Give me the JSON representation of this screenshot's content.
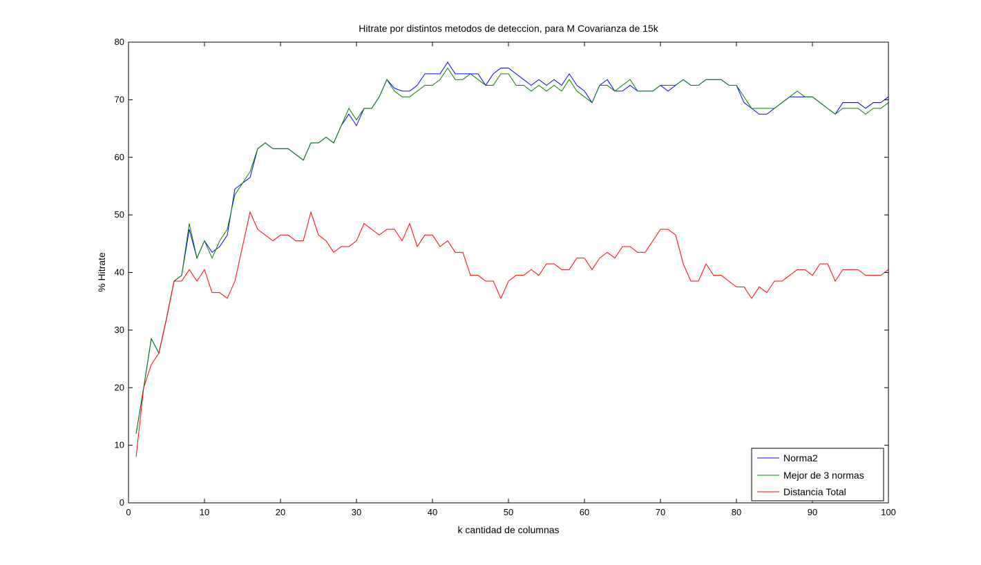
{
  "chart_data": {
    "type": "line",
    "title": "Hitrate por distintos metodos de deteccion, para M Covarianza de 15k",
    "xlabel": "k cantidad de columnas",
    "ylabel": "% Hitrate",
    "xlim": [
      0,
      100
    ],
    "ylim": [
      0,
      80
    ],
    "xticks": [
      0,
      10,
      20,
      30,
      40,
      50,
      60,
      70,
      80,
      90,
      100
    ],
    "yticks": [
      0,
      10,
      20,
      30,
      40,
      50,
      60,
      70,
      80
    ],
    "grid": false,
    "legend_position": "bottom-right",
    "x": [
      1,
      2,
      3,
      4,
      5,
      6,
      7,
      8,
      9,
      10,
      11,
      12,
      13,
      14,
      15,
      16,
      17,
      18,
      19,
      20,
      21,
      22,
      23,
      24,
      25,
      26,
      27,
      28,
      29,
      30,
      31,
      32,
      33,
      34,
      35,
      36,
      37,
      38,
      39,
      40,
      41,
      42,
      43,
      44,
      45,
      46,
      47,
      48,
      49,
      50,
      51,
      52,
      53,
      54,
      55,
      56,
      57,
      58,
      59,
      60,
      61,
      62,
      63,
      64,
      65,
      66,
      67,
      68,
      69,
      70,
      71,
      72,
      73,
      74,
      75,
      76,
      77,
      78,
      79,
      80,
      81,
      82,
      83,
      84,
      85,
      86,
      87,
      88,
      89,
      90,
      91,
      92,
      93,
      94,
      95,
      96,
      97,
      98,
      99,
      100
    ],
    "series": [
      {
        "name": "Norma2",
        "color": "#0000ff",
        "values": [
          12,
          20,
          28.5,
          26,
          32,
          38.5,
          39.5,
          47.5,
          42.5,
          45.5,
          43.5,
          44.5,
          46.5,
          54.5,
          55.5,
          56.5,
          61.5,
          62.5,
          61.5,
          61.5,
          61.5,
          60.5,
          59.5,
          62.5,
          62.5,
          63.5,
          62.5,
          65.5,
          67.5,
          65.5,
          68.5,
          68.5,
          70.5,
          73.5,
          72,
          71.5,
          71.5,
          72.5,
          74.5,
          74.5,
          74.5,
          76.5,
          74.5,
          74.5,
          74.5,
          74.5,
          72.5,
          74.5,
          75.5,
          75.5,
          74.5,
          73.5,
          72.5,
          73.5,
          72.5,
          73.5,
          72.5,
          74.5,
          72.5,
          71.5,
          69.5,
          72.5,
          73.5,
          71.5,
          71.5,
          72.5,
          71.5,
          71.5,
          71.5,
          72.5,
          71.5,
          72.5,
          73.5,
          72.5,
          72.5,
          73.5,
          73.5,
          73.5,
          72.5,
          72.5,
          69.5,
          68.5,
          67.5,
          67.5,
          68.5,
          69.5,
          70.5,
          70.5,
          70.5,
          70.5,
          69.5,
          68.5,
          67.5,
          69.5,
          69.5,
          69.5,
          68.5,
          69.5,
          69.5,
          70.5
        ]
      },
      {
        "name": "Mejor de 3 normas",
        "color": "#008000",
        "values": [
          12,
          20,
          28.5,
          26,
          32,
          38.5,
          39.5,
          48.5,
          42.5,
          45.5,
          42.5,
          45.5,
          47.5,
          53.5,
          55.5,
          57.5,
          61.5,
          62.5,
          61.5,
          61.5,
          61.5,
          60.5,
          59.5,
          62.5,
          62.5,
          63.5,
          62.5,
          65.5,
          68.5,
          66.5,
          68.5,
          68.5,
          70.5,
          73.5,
          71.5,
          70.5,
          70.5,
          71.5,
          72.5,
          72.5,
          73.5,
          75.5,
          73.5,
          73.5,
          74.5,
          73.5,
          72.5,
          72.5,
          74.5,
          74.5,
          72.5,
          72.5,
          71.5,
          72.5,
          71.5,
          72.5,
          71.5,
          73.5,
          71.5,
          70.5,
          69.5,
          72.5,
          72.5,
          71.5,
          72.5,
          73.5,
          71.5,
          71.5,
          71.5,
          72.5,
          72.5,
          72.5,
          73.5,
          72.5,
          72.5,
          73.5,
          73.5,
          73.5,
          72.5,
          72.5,
          70.5,
          68.5,
          68.5,
          68.5,
          68.5,
          69.5,
          70.5,
          71.5,
          70.5,
          70.5,
          69.5,
          68.5,
          67.5,
          68.5,
          68.5,
          68.5,
          67.5,
          68.5,
          68.5,
          69.5
        ]
      },
      {
        "name": "Distancia Total",
        "color": "#ff0000",
        "values": [
          8,
          20,
          24,
          26,
          32,
          38.5,
          38.5,
          40.5,
          38.5,
          40.5,
          36.5,
          36.5,
          35.5,
          38.5,
          44.5,
          50.5,
          47.5,
          46.5,
          45.5,
          46.5,
          46.5,
          45.5,
          45.5,
          50.5,
          46.5,
          45.5,
          43.5,
          44.5,
          44.5,
          45.5,
          48.5,
          47.5,
          46.5,
          47.5,
          47.5,
          45.5,
          48.5,
          44.5,
          46.5,
          46.5,
          44.5,
          45.5,
          43.5,
          43.5,
          39.5,
          39.5,
          38.5,
          38.5,
          35.5,
          38.5,
          39.5,
          39.5,
          40.5,
          39.5,
          41.5,
          41.5,
          40.5,
          40.5,
          42.5,
          42.5,
          40.5,
          42.5,
          43.5,
          42.5,
          44.5,
          44.5,
          43.5,
          43.5,
          45.5,
          47.5,
          47.5,
          46.5,
          41.5,
          38.5,
          38.5,
          41.5,
          39.5,
          39.5,
          38.5,
          37.5,
          37.5,
          35.5,
          37.5,
          36.5,
          38.5,
          38.5,
          39.5,
          40.5,
          40.5,
          39.5,
          41.5,
          41.5,
          38.5,
          40.5,
          40.5,
          40.5,
          39.5,
          39.5,
          39.5,
          40.5
        ]
      }
    ]
  }
}
